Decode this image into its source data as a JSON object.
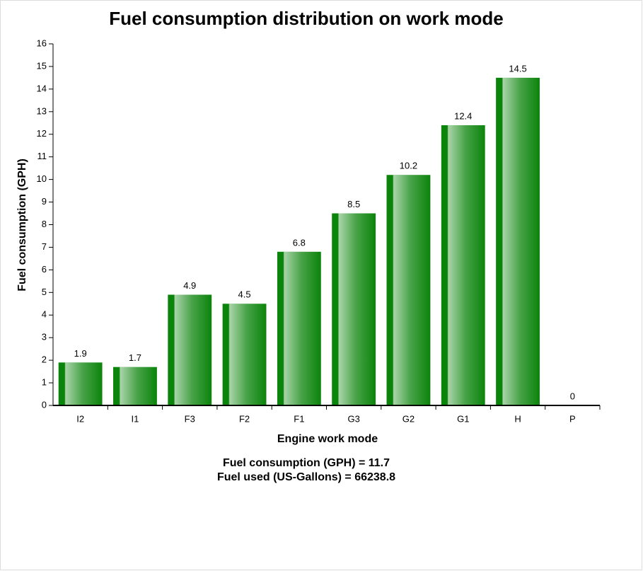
{
  "chart_data": {
    "type": "bar",
    "title": "Fuel consumption distribution on work mode",
    "x_label": "Engine work mode",
    "y_label": "Fuel consumption (GPH)",
    "categories": [
      "I2",
      "I1",
      "F3",
      "F2",
      "F1",
      "G3",
      "G2",
      "G1",
      "H",
      "P"
    ],
    "values": [
      1.9,
      1.7,
      4.9,
      4.5,
      6.8,
      8.5,
      10.2,
      12.4,
      14.5,
      0
    ],
    "color": "#0b840b",
    "ylim": [
      0,
      16
    ],
    "yticks": [
      0,
      1,
      2,
      3,
      4,
      5,
      6,
      7,
      8,
      9,
      10,
      11,
      12,
      13,
      14,
      15,
      16
    ],
    "grid": false,
    "annotations": [
      "Fuel consumption (GPH) = 11.7",
      "Fuel used (US-Gallons) = 66238.8"
    ]
  }
}
